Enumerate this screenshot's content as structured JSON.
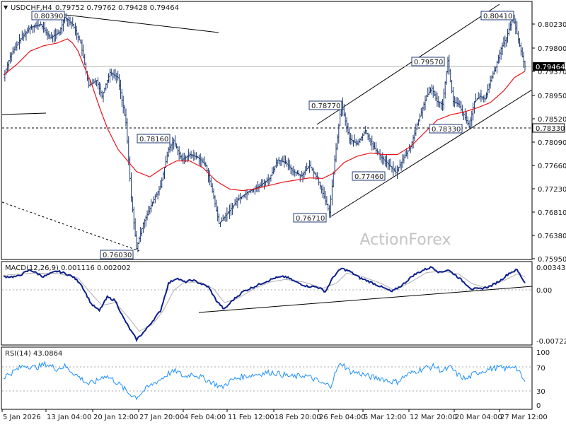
{
  "chart_data": {
    "type": "candlestick",
    "symbol_title": "USDCHF,H4",
    "ohlc_text": "0.79752 0.79762 0.79428 0.79464",
    "watermark": "ActionForex",
    "x_ticks": [
      "5 Jan 2026",
      "13 Jan 04:00",
      "20 Jan 12:00",
      "27 Jan 20:00",
      "4 Feb 04:00",
      "11 Feb 12:00",
      "18 Feb 20:00",
      "26 Feb 04:00",
      "5 Mar 12:00",
      "12 Mar 20:00",
      "20 Mar 04:00",
      "27 Mar 12:00"
    ],
    "price_panel": {
      "y_ticks": [
        "0.80230",
        "0.79800",
        "0.79370",
        "0.78950",
        "0.78520",
        "0.78090",
        "0.77660",
        "0.77230",
        "0.76810",
        "0.76380",
        "0.75950"
      ],
      "ylim": [
        0.7585,
        0.8066
      ],
      "current_price": "0.79464",
      "support_level_label": "0.78330",
      "callouts": [
        {
          "label": "0.80390",
          "bar": 46
        },
        {
          "label": "0.76030",
          "bar": 100
        },
        {
          "label": "0.78160",
          "bar": 99
        },
        {
          "label": "0.76710",
          "bar": 245
        },
        {
          "label": "0.78770",
          "bar": 254
        },
        {
          "label": "0.77460",
          "bar": 295
        },
        {
          "label": "0.79570",
          "bar": 334
        },
        {
          "label": "0.78330",
          "bar": 350
        },
        {
          "label": "0.80410",
          "bar": 383
        }
      ],
      "series": [
        {
          "name": "price",
          "color": "#1e3a73"
        },
        {
          "name": "moving-average",
          "color": "#e8141c"
        }
      ],
      "price_anchors": [
        [
          0,
          0.7925
        ],
        [
          5,
          0.7965
        ],
        [
          12,
          0.7995
        ],
        [
          20,
          0.802
        ],
        [
          28,
          0.8025
        ],
        [
          35,
          0.8
        ],
        [
          42,
          0.801
        ],
        [
          46,
          0.8039
        ],
        [
          52,
          0.8025
        ],
        [
          58,
          0.799
        ],
        [
          64,
          0.791
        ],
        [
          70,
          0.792
        ],
        [
          74,
          0.789
        ],
        [
          80,
          0.7935
        ],
        [
          86,
          0.7925
        ],
        [
          92,
          0.784
        ],
        [
          96,
          0.77
        ],
        [
          100,
          0.7603
        ],
        [
          105,
          0.765
        ],
        [
          112,
          0.769
        ],
        [
          118,
          0.772
        ],
        [
          124,
          0.779
        ],
        [
          128,
          0.7806
        ],
        [
          134,
          0.777
        ],
        [
          140,
          0.778
        ],
        [
          146,
          0.7775
        ],
        [
          152,
          0.776
        ],
        [
          158,
          0.77
        ],
        [
          162,
          0.765
        ],
        [
          168,
          0.7668
        ],
        [
          176,
          0.7695
        ],
        [
          184,
          0.771
        ],
        [
          192,
          0.772
        ],
        [
          200,
          0.7735
        ],
        [
          206,
          0.777
        ],
        [
          212,
          0.7765
        ],
        [
          218,
          0.7748
        ],
        [
          224,
          0.774
        ],
        [
          230,
          0.776
        ],
        [
          236,
          0.7735
        ],
        [
          241,
          0.77
        ],
        [
          245,
          0.7671
        ],
        [
          249,
          0.777
        ],
        [
          254,
          0.7877
        ],
        [
          260,
          0.781
        ],
        [
          266,
          0.78
        ],
        [
          272,
          0.7825
        ],
        [
          278,
          0.7795
        ],
        [
          284,
          0.7775
        ],
        [
          290,
          0.776
        ],
        [
          295,
          0.7746
        ],
        [
          300,
          0.777
        ],
        [
          306,
          0.7795
        ],
        [
          312,
          0.7845
        ],
        [
          318,
          0.789
        ],
        [
          322,
          0.7905
        ],
        [
          326,
          0.788
        ],
        [
          330,
          0.7875
        ],
        [
          334,
          0.7957
        ],
        [
          338,
          0.788
        ],
        [
          342,
          0.7875
        ],
        [
          346,
          0.7855
        ],
        [
          350,
          0.7833
        ],
        [
          354,
          0.788
        ],
        [
          358,
          0.789
        ],
        [
          362,
          0.7885
        ],
        [
          366,
          0.792
        ],
        [
          370,
          0.7945
        ],
        [
          374,
          0.798
        ],
        [
          378,
          0.8
        ],
        [
          383,
          0.8041
        ],
        [
          388,
          0.7985
        ],
        [
          392,
          0.7946
        ]
      ],
      "ma_anchors": [
        [
          0,
          0.793
        ],
        [
          10,
          0.795
        ],
        [
          20,
          0.7975
        ],
        [
          30,
          0.7985
        ],
        [
          40,
          0.799
        ],
        [
          48,
          0.7998
        ],
        [
          52,
          0.799
        ],
        [
          56,
          0.7975
        ],
        [
          60,
          0.795
        ],
        [
          66,
          0.7915
        ],
        [
          72,
          0.787
        ],
        [
          78,
          0.783
        ],
        [
          86,
          0.779
        ],
        [
          94,
          0.7766
        ],
        [
          100,
          0.7748
        ],
        [
          110,
          0.7738
        ],
        [
          120,
          0.7755
        ],
        [
          130,
          0.7768
        ],
        [
          140,
          0.7768
        ],
        [
          150,
          0.7755
        ],
        [
          160,
          0.773
        ],
        [
          170,
          0.7715
        ],
        [
          180,
          0.7712
        ],
        [
          190,
          0.7716
        ],
        [
          200,
          0.7722
        ],
        [
          210,
          0.7728
        ],
        [
          220,
          0.7732
        ],
        [
          230,
          0.7736
        ],
        [
          240,
          0.7735
        ],
        [
          248,
          0.7745
        ],
        [
          256,
          0.7765
        ],
        [
          266,
          0.7777
        ],
        [
          276,
          0.7783
        ],
        [
          286,
          0.778
        ],
        [
          296,
          0.778
        ],
        [
          306,
          0.7795
        ],
        [
          316,
          0.782
        ],
        [
          326,
          0.7845
        ],
        [
          336,
          0.7855
        ],
        [
          346,
          0.786
        ],
        [
          356,
          0.7868
        ],
        [
          366,
          0.7878
        ],
        [
          376,
          0.79
        ],
        [
          384,
          0.7925
        ],
        [
          392,
          0.7937
        ]
      ]
    },
    "macd_panel": {
      "label": "MACD(12,26,9) 0.001116 0.002002",
      "y_ticks": [
        "0.003432",
        "0.00",
        "-0.007223"
      ],
      "ylim": [
        -0.0078,
        0.004
      ],
      "series": [
        {
          "name": "MACD",
          "color": "#0b1f8c"
        },
        {
          "name": "signal",
          "color": "#b0b0b0"
        }
      ],
      "macd_anchors": [
        [
          0,
          0.002
        ],
        [
          10,
          0.002
        ],
        [
          20,
          0.003
        ],
        [
          30,
          0.002
        ],
        [
          40,
          0.0028
        ],
        [
          46,
          0.0025
        ],
        [
          52,
          0.002
        ],
        [
          58,
          0.001
        ],
        [
          66,
          -0.002
        ],
        [
          72,
          -0.003
        ],
        [
          78,
          -0.001
        ],
        [
          84,
          -0.0015
        ],
        [
          90,
          -0.004
        ],
        [
          96,
          -0.006
        ],
        [
          100,
          -0.0072
        ],
        [
          106,
          -0.006
        ],
        [
          112,
          -0.0045
        ],
        [
          118,
          -0.003
        ],
        [
          124,
          0.001
        ],
        [
          130,
          0.0018
        ],
        [
          136,
          0.0012
        ],
        [
          142,
          0.0015
        ],
        [
          148,
          0.001
        ],
        [
          154,
          0.0005
        ],
        [
          160,
          -0.0015
        ],
        [
          166,
          -0.0028
        ],
        [
          172,
          -0.0015
        ],
        [
          180,
          -0.0002
        ],
        [
          188,
          0.0005
        ],
        [
          196,
          0.0012
        ],
        [
          204,
          0.0018
        ],
        [
          212,
          0.002
        ],
        [
          220,
          0.0012
        ],
        [
          228,
          0.0006
        ],
        [
          236,
          0.0005
        ],
        [
          242,
          -0.0002
        ],
        [
          248,
          0.002
        ],
        [
          254,
          0.0032
        ],
        [
          260,
          0.0028
        ],
        [
          268,
          0.0018
        ],
        [
          276,
          0.0012
        ],
        [
          284,
          0.0005
        ],
        [
          292,
          -0.0002
        ],
        [
          300,
          0.0008
        ],
        [
          308,
          0.0022
        ],
        [
          316,
          0.003
        ],
        [
          322,
          0.0034
        ],
        [
          328,
          0.0026
        ],
        [
          334,
          0.003
        ],
        [
          340,
          0.0022
        ],
        [
          346,
          0.0012
        ],
        [
          352,
          0.0002
        ],
        [
          358,
          0.0002
        ],
        [
          366,
          0.0006
        ],
        [
          374,
          0.0015
        ],
        [
          380,
          0.0025
        ],
        [
          386,
          0.003
        ],
        [
          392,
          0.0011
        ]
      ],
      "signal_anchors": [
        [
          0,
          0.0022
        ],
        [
          20,
          0.0025
        ],
        [
          40,
          0.0025
        ],
        [
          56,
          0.0018
        ],
        [
          66,
          -0.0005
        ],
        [
          74,
          -0.0022
        ],
        [
          84,
          -0.0018
        ],
        [
          94,
          -0.004
        ],
        [
          102,
          -0.006
        ],
        [
          112,
          -0.005
        ],
        [
          120,
          -0.003
        ],
        [
          128,
          0.0
        ],
        [
          136,
          0.0012
        ],
        [
          148,
          0.0012
        ],
        [
          158,
          0.0002
        ],
        [
          166,
          -0.0018
        ],
        [
          176,
          -0.0012
        ],
        [
          188,
          0.0002
        ],
        [
          200,
          0.0012
        ],
        [
          212,
          0.0016
        ],
        [
          226,
          0.0012
        ],
        [
          240,
          0.0003
        ],
        [
          250,
          0.001
        ],
        [
          258,
          0.0025
        ],
        [
          270,
          0.002
        ],
        [
          284,
          0.001
        ],
        [
          294,
          0.0
        ],
        [
          306,
          0.0012
        ],
        [
          318,
          0.0026
        ],
        [
          330,
          0.0028
        ],
        [
          342,
          0.0024
        ],
        [
          352,
          0.001
        ],
        [
          362,
          0.0004
        ],
        [
          376,
          0.0014
        ],
        [
          386,
          0.0024
        ],
        [
          392,
          0.002
        ]
      ]
    },
    "rsi_panel": {
      "label": "RSI(14) 43.0864",
      "y_ticks": [
        "100",
        "70",
        "30",
        "0"
      ],
      "ylim": [
        0,
        100
      ],
      "levels": [
        70,
        30
      ],
      "color": "#1e90ff",
      "rsi_anchors": [
        [
          0,
          52
        ],
        [
          8,
          62
        ],
        [
          16,
          72
        ],
        [
          24,
          68
        ],
        [
          32,
          74
        ],
        [
          40,
          66
        ],
        [
          46,
          70
        ],
        [
          52,
          60
        ],
        [
          58,
          50
        ],
        [
          64,
          40
        ],
        [
          70,
          45
        ],
        [
          76,
          55
        ],
        [
          82,
          48
        ],
        [
          88,
          38
        ],
        [
          94,
          25
        ],
        [
          100,
          18
        ],
        [
          106,
          30
        ],
        [
          112,
          40
        ],
        [
          118,
          48
        ],
        [
          124,
          58
        ],
        [
          130,
          62
        ],
        [
          136,
          52
        ],
        [
          142,
          58
        ],
        [
          150,
          50
        ],
        [
          158,
          42
        ],
        [
          164,
          34
        ],
        [
          170,
          45
        ],
        [
          178,
          52
        ],
        [
          186,
          55
        ],
        [
          194,
          58
        ],
        [
          202,
          60
        ],
        [
          210,
          56
        ],
        [
          218,
          52
        ],
        [
          226,
          55
        ],
        [
          234,
          48
        ],
        [
          240,
          40
        ],
        [
          246,
          38
        ],
        [
          250,
          62
        ],
        [
          254,
          76
        ],
        [
          260,
          62
        ],
        [
          268,
          58
        ],
        [
          276,
          52
        ],
        [
          284,
          50
        ],
        [
          290,
          45
        ],
        [
          296,
          44
        ],
        [
          302,
          54
        ],
        [
          310,
          62
        ],
        [
          318,
          68
        ],
        [
          324,
          70
        ],
        [
          330,
          62
        ],
        [
          336,
          68
        ],
        [
          342,
          55
        ],
        [
          348,
          48
        ],
        [
          354,
          58
        ],
        [
          360,
          62
        ],
        [
          366,
          66
        ],
        [
          372,
          68
        ],
        [
          378,
          66
        ],
        [
          384,
          72
        ],
        [
          388,
          58
        ],
        [
          392,
          43
        ]
      ]
    }
  }
}
